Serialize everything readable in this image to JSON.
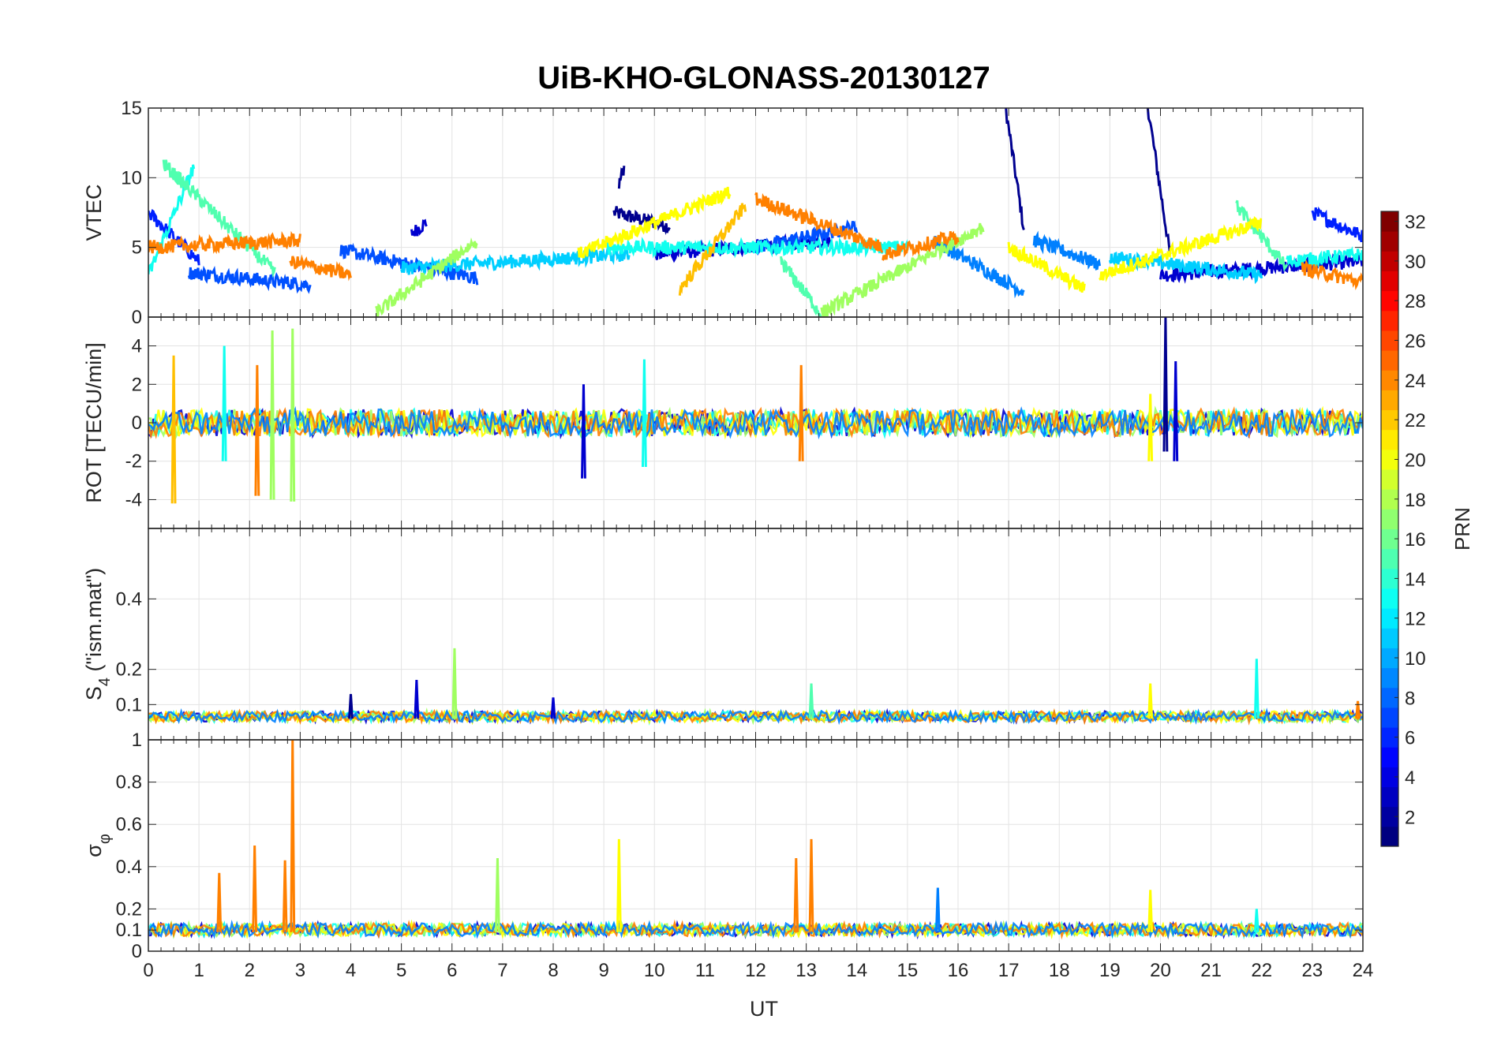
{
  "figure": {
    "title": "UiB-KHO-GLONASS-20130127",
    "xlabel": "UT",
    "x_ticks": [
      0,
      1,
      2,
      3,
      4,
      5,
      6,
      7,
      8,
      9,
      10,
      11,
      12,
      13,
      14,
      15,
      16,
      17,
      18,
      19,
      20,
      21,
      22,
      23,
      24
    ],
    "xlim": [
      0,
      24
    ],
    "grid": true
  },
  "colorbar": {
    "label": "PRN",
    "range": [
      1,
      32
    ],
    "ticks": [
      2,
      4,
      6,
      8,
      10,
      12,
      14,
      16,
      18,
      20,
      22,
      24,
      26,
      28,
      30,
      32
    ],
    "colormap": "jet"
  },
  "chart_data": [
    {
      "type": "line",
      "panel": "VTEC",
      "ylabel": "VTEC",
      "ylim": [
        0,
        15
      ],
      "y_ticks": [
        0,
        5,
        10,
        15
      ],
      "series": [
        {
          "prn": 1,
          "color": "#00008f",
          "segments": [
            [
              9.2,
              10.3,
              7.5,
              6.5
            ],
            [
              9.3,
              9.4,
              9.5,
              10.8
            ],
            [
              16.8,
              17.3,
              18.4,
              6.3
            ],
            [
              19.5,
              20.2,
              21.2,
              4.2
            ]
          ]
        },
        {
          "prn": 3,
          "color": "#0000cf",
          "segments": [
            [
              5.2,
              5.5,
              6.0,
              6.8
            ],
            [
              10.0,
              13.5,
              4.5,
              5.5
            ],
            [
              20.0,
              24.0,
              3.0,
              4.0
            ]
          ]
        },
        {
          "prn": 5,
          "color": "#0020ff",
          "segments": [
            [
              0.0,
              1.0,
              7.5,
              4.0
            ],
            [
              23.0,
              24.0,
              7.5,
              5.8
            ]
          ]
        },
        {
          "prn": 6,
          "color": "#0050ff",
          "segments": [
            [
              0.8,
              3.2,
              3.2,
              2.3
            ],
            [
              3.8,
              6.5,
              4.8,
              2.8
            ],
            [
              12.0,
              14.0,
              5.0,
              6.5
            ]
          ]
        },
        {
          "prn": 8,
          "color": "#0080ff",
          "segments": [
            [
              15.5,
              17.3,
              5.5,
              1.8
            ],
            [
              17.5,
              18.8,
              5.5,
              3.8
            ]
          ]
        },
        {
          "prn": 11,
          "color": "#00cfff",
          "segments": [
            [
              5.0,
              9.5,
              3.5,
              4.5
            ],
            [
              19.0,
              22.0,
              4.3,
              3.0
            ]
          ]
        },
        {
          "prn": 12,
          "color": "#10ffef",
          "segments": [
            [
              0.0,
              0.9,
              3.0,
              10.8
            ],
            [
              9.0,
              15.0,
              5.0,
              5.0
            ],
            [
              22.5,
              24.0,
              4.0,
              4.5
            ]
          ]
        },
        {
          "prn": 14,
          "color": "#50ffaf",
          "segments": [
            [
              0.3,
              2.5,
              11.0,
              3.2
            ],
            [
              12.5,
              13.3,
              4.0,
              0.2
            ],
            [
              21.5,
              22.5,
              8.0,
              3.5
            ]
          ]
        },
        {
          "prn": 17,
          "color": "#9fff60",
          "segments": [
            [
              4.5,
              6.5,
              0.3,
              5.5
            ],
            [
              13.3,
              16.5,
              0.3,
              6.5
            ]
          ]
        },
        {
          "prn": 20,
          "color": "#ffff00",
          "segments": [
            [
              8.5,
              11.5,
              4.5,
              9.0
            ],
            [
              17.0,
              18.5,
              5.0,
              2.0
            ],
            [
              18.8,
              22.0,
              3.0,
              6.8
            ]
          ]
        },
        {
          "prn": 22,
          "color": "#ffbf00",
          "segments": [
            [
              10.5,
              11.8,
              2.0,
              8.0
            ]
          ]
        },
        {
          "prn": 24,
          "color": "#ff8000",
          "segments": [
            [
              0.0,
              3.0,
              5.0,
              5.5
            ],
            [
              2.8,
              4.0,
              4.0,
              3.0
            ],
            [
              12.0,
              14.5,
              8.5,
              5.0
            ],
            [
              14.5,
              16.0,
              4.5,
              5.8
            ],
            [
              22.8,
              24.0,
              3.5,
              2.5
            ]
          ]
        }
      ]
    },
    {
      "type": "line",
      "panel": "ROT",
      "ylabel": "ROT [TECU/min]",
      "ylim": [
        -5.5,
        5.5
      ],
      "y_ticks": [
        -4,
        -2,
        0,
        2,
        4
      ],
      "spikes": [
        {
          "x": 0.5,
          "min": -4.2,
          "max": 3.5,
          "color": "#ffbf00"
        },
        {
          "x": 1.5,
          "min": -2.0,
          "max": 4.0,
          "color": "#10ffef"
        },
        {
          "x": 2.15,
          "min": -3.8,
          "max": 3.0,
          "color": "#ff8000"
        },
        {
          "x": 2.45,
          "min": -4.0,
          "max": 4.8,
          "color": "#9fff60"
        },
        {
          "x": 2.85,
          "min": -4.1,
          "max": 4.9,
          "color": "#9fff60"
        },
        {
          "x": 8.6,
          "min": -2.9,
          "max": 2.0,
          "color": "#0000cf"
        },
        {
          "x": 9.8,
          "min": -2.3,
          "max": 3.3,
          "color": "#10ffef"
        },
        {
          "x": 12.9,
          "min": -2.0,
          "max": 3.0,
          "color": "#ff8000"
        },
        {
          "x": 20.1,
          "min": -1.5,
          "max": 5.5,
          "color": "#00008f"
        },
        {
          "x": 20.3,
          "min": -2.0,
          "max": 3.2,
          "color": "#0000cf"
        },
        {
          "x": 19.8,
          "min": -2.0,
          "max": 1.5,
          "color": "#ffff00"
        }
      ]
    },
    {
      "type": "line",
      "panel": "S4",
      "ylabel": "S",
      "ylabel_sub": "4",
      "ylabel_suffix": " (\"ism.mat\")",
      "ylim": [
        0,
        0.6
      ],
      "y_ticks": [
        0.1,
        0.2,
        0.4
      ],
      "baseline": 0.06,
      "spikes": [
        {
          "x": 4.0,
          "max": 0.13,
          "color": "#00008f"
        },
        {
          "x": 5.3,
          "max": 0.17,
          "color": "#0000cf"
        },
        {
          "x": 6.05,
          "max": 0.26,
          "color": "#9fff60"
        },
        {
          "x": 8.0,
          "max": 0.12,
          "color": "#0000cf"
        },
        {
          "x": 13.1,
          "max": 0.16,
          "color": "#50ffaf"
        },
        {
          "x": 19.8,
          "max": 0.16,
          "color": "#ffff00"
        },
        {
          "x": 21.9,
          "max": 0.23,
          "color": "#10ffef"
        },
        {
          "x": 23.9,
          "max": 0.11,
          "color": "#ff8000"
        }
      ]
    },
    {
      "type": "line",
      "panel": "sigma_phi",
      "ylabel": "σ",
      "ylabel_sub": "φ",
      "ylim": [
        0,
        1
      ],
      "y_ticks": [
        0,
        0.1,
        0.2,
        0.4,
        0.6,
        0.8,
        1
      ],
      "baseline": 0.09,
      "spikes": [
        {
          "x": 1.4,
          "max": 0.37,
          "color": "#ff8000"
        },
        {
          "x": 2.1,
          "max": 0.5,
          "color": "#ff8000"
        },
        {
          "x": 2.7,
          "max": 0.43,
          "color": "#ff8000"
        },
        {
          "x": 2.85,
          "max": 1.0,
          "color": "#ff8000"
        },
        {
          "x": 6.9,
          "max": 0.44,
          "color": "#9fff60"
        },
        {
          "x": 9.3,
          "max": 0.53,
          "color": "#ffff00"
        },
        {
          "x": 12.8,
          "max": 0.44,
          "color": "#ff8000"
        },
        {
          "x": 13.1,
          "max": 0.53,
          "color": "#ff8000"
        },
        {
          "x": 15.6,
          "max": 0.3,
          "color": "#0080ff"
        },
        {
          "x": 19.8,
          "max": 0.29,
          "color": "#ffff00"
        },
        {
          "x": 21.9,
          "max": 0.2,
          "color": "#10ffef"
        }
      ]
    }
  ]
}
